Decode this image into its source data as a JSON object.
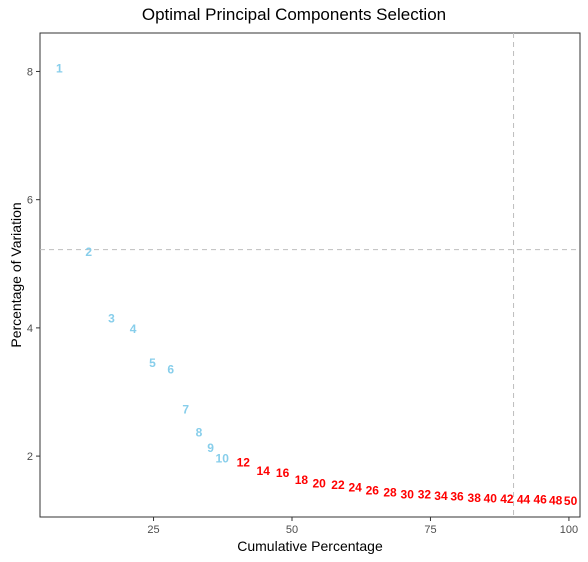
{
  "title": "Optimal Principal Components Selection",
  "chart_data": {
    "type": "scatter",
    "title": "Optimal Principal Components Selection",
    "xlabel": "Cumulative Percentage",
    "ylabel": "Percentage of Variation",
    "xlim": [
      4.5,
      102
    ],
    "ylim": [
      1.05,
      8.6
    ],
    "x_ticks": [
      25,
      50,
      75,
      100
    ],
    "y_ticks": [
      2,
      4,
      6,
      8
    ],
    "grid": false,
    "legend": "none",
    "reference_lines": {
      "vertical_x": 90,
      "horizontal_y": 5.22
    },
    "colors": {
      "selected": "#87CEEB",
      "not_selected": "#FF0000",
      "reference_line": "#BEBEBE",
      "axis": "#333333"
    },
    "points": [
      {
        "label": "1",
        "x": 8.0,
        "y": 8.05,
        "selected": true
      },
      {
        "label": "2",
        "x": 13.3,
        "y": 5.18,
        "selected": true
      },
      {
        "label": "3",
        "x": 17.4,
        "y": 4.15,
        "selected": true
      },
      {
        "label": "4",
        "x": 21.3,
        "y": 3.98,
        "selected": true
      },
      {
        "label": "5",
        "x": 24.8,
        "y": 3.45,
        "selected": true
      },
      {
        "label": "6",
        "x": 28.1,
        "y": 3.35,
        "selected": true
      },
      {
        "label": "7",
        "x": 30.8,
        "y": 2.73,
        "selected": true
      },
      {
        "label": "8",
        "x": 33.2,
        "y": 2.37,
        "selected": true
      },
      {
        "label": "9",
        "x": 35.3,
        "y": 2.13,
        "selected": true
      },
      {
        "label": "10",
        "x": 37.4,
        "y": 1.96,
        "selected": true
      },
      {
        "label": "12",
        "x": 41.2,
        "y": 1.9,
        "selected": false
      },
      {
        "label": "14",
        "x": 44.8,
        "y": 1.77,
        "selected": false
      },
      {
        "label": "16",
        "x": 48.3,
        "y": 1.74,
        "selected": false
      },
      {
        "label": "18",
        "x": 51.7,
        "y": 1.63,
        "selected": false
      },
      {
        "label": "20",
        "x": 54.9,
        "y": 1.57,
        "selected": false
      },
      {
        "label": "22",
        "x": 58.3,
        "y": 1.55,
        "selected": false
      },
      {
        "label": "24",
        "x": 61.4,
        "y": 1.51,
        "selected": false
      },
      {
        "label": "26",
        "x": 64.5,
        "y": 1.46,
        "selected": false
      },
      {
        "label": "28",
        "x": 67.7,
        "y": 1.43,
        "selected": false
      },
      {
        "label": "30",
        "x": 70.8,
        "y": 1.4,
        "selected": false
      },
      {
        "label": "32",
        "x": 73.9,
        "y": 1.4,
        "selected": false
      },
      {
        "label": "34",
        "x": 76.9,
        "y": 1.38,
        "selected": false
      },
      {
        "label": "36",
        "x": 79.8,
        "y": 1.37,
        "selected": false
      },
      {
        "label": "38",
        "x": 82.9,
        "y": 1.35,
        "selected": false
      },
      {
        "label": "40",
        "x": 85.8,
        "y": 1.34,
        "selected": false
      },
      {
        "label": "42",
        "x": 88.8,
        "y": 1.33,
        "selected": false
      },
      {
        "label": "44",
        "x": 91.8,
        "y": 1.32,
        "selected": false
      },
      {
        "label": "46",
        "x": 94.8,
        "y": 1.32,
        "selected": false
      },
      {
        "label": "48",
        "x": 97.6,
        "y": 1.31,
        "selected": false
      },
      {
        "label": "50",
        "x": 100.3,
        "y": 1.3,
        "selected": false
      }
    ]
  }
}
